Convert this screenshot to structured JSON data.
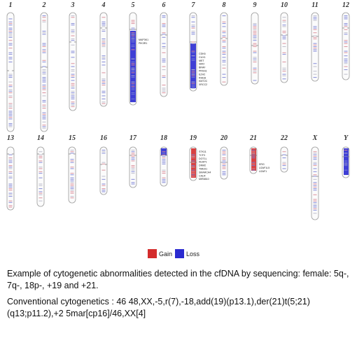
{
  "karyotype": {
    "chromosomes": [
      {
        "id": "1",
        "changes": [],
        "genes": []
      },
      {
        "id": "2",
        "changes": [],
        "genes": []
      },
      {
        "id": "3",
        "changes": [],
        "genes": []
      },
      {
        "id": "4",
        "changes": [],
        "genes": []
      },
      {
        "id": "5",
        "changes": [
          {
            "type": "loss",
            "arm": "q"
          }
        ],
        "genes": [
          "MAP3K1",
          "PIK3R1"
        ]
      },
      {
        "id": "6",
        "changes": [],
        "genes": []
      },
      {
        "id": "7",
        "changes": [
          {
            "type": "loss",
            "arm": "q"
          }
        ],
        "genes": [
          "CDK6",
          "CUX1",
          "MET",
          "SMO",
          "BRAF",
          "PRSS1",
          "EZH2",
          "RHEB",
          "KMT2C",
          "XRCC2"
        ]
      },
      {
        "id": "8",
        "changes": [],
        "genes": []
      },
      {
        "id": "9",
        "changes": [],
        "genes": []
      },
      {
        "id": "10",
        "changes": [],
        "genes": []
      },
      {
        "id": "11",
        "changes": [],
        "genes": []
      },
      {
        "id": "12",
        "changes": [],
        "genes": []
      },
      {
        "id": "13",
        "changes": [],
        "genes": []
      },
      {
        "id": "14",
        "changes": [],
        "genes": []
      },
      {
        "id": "15",
        "changes": [],
        "genes": []
      },
      {
        "id": "16",
        "changes": [],
        "genes": []
      },
      {
        "id": "17",
        "changes": [],
        "genes": []
      },
      {
        "id": "18",
        "changes": [
          {
            "type": "loss",
            "arm": "p"
          }
        ],
        "genes": []
      },
      {
        "id": "19",
        "changes": [
          {
            "type": "gain",
            "arm": "whole"
          }
        ],
        "genes": [
          "STK11",
          "TCF3",
          "DOT1L",
          "KEAP1",
          "DNM2",
          "TMED1",
          "SMARCA4",
          "CALR",
          "MIR8810"
        ]
      },
      {
        "id": "20",
        "changes": [],
        "genes": []
      },
      {
        "id": "21",
        "changes": [
          {
            "type": "gain",
            "arm": "whole"
          }
        ],
        "genes": [
          "ERG",
          "U2AF1L5",
          "U2AF1"
        ]
      },
      {
        "id": "22",
        "changes": [],
        "genes": []
      },
      {
        "id": "X",
        "changes": [],
        "genes": []
      },
      {
        "id": "Y",
        "changes": [
          {
            "type": "loss",
            "arm": "whole"
          }
        ],
        "genes": []
      }
    ]
  },
  "legend": {
    "gain_label": "Gain",
    "loss_label": "Loss",
    "gain_color": "#d42c2c",
    "loss_color": "#2a2ad0"
  },
  "caption": {
    "line1": "Example of cytogenetic abnormalities detected in the cfDNA by sequencing: female: 5q-, 7q-, 18p-, +19 and +21.",
    "line2": "Conventional cytogenetics : 46 48,XX,-5,r(7),-18,add(19)(p13.1),der(21)t(5;21)(q13;p11.2),+2 5mar[cp16]/46,XX[4]"
  }
}
